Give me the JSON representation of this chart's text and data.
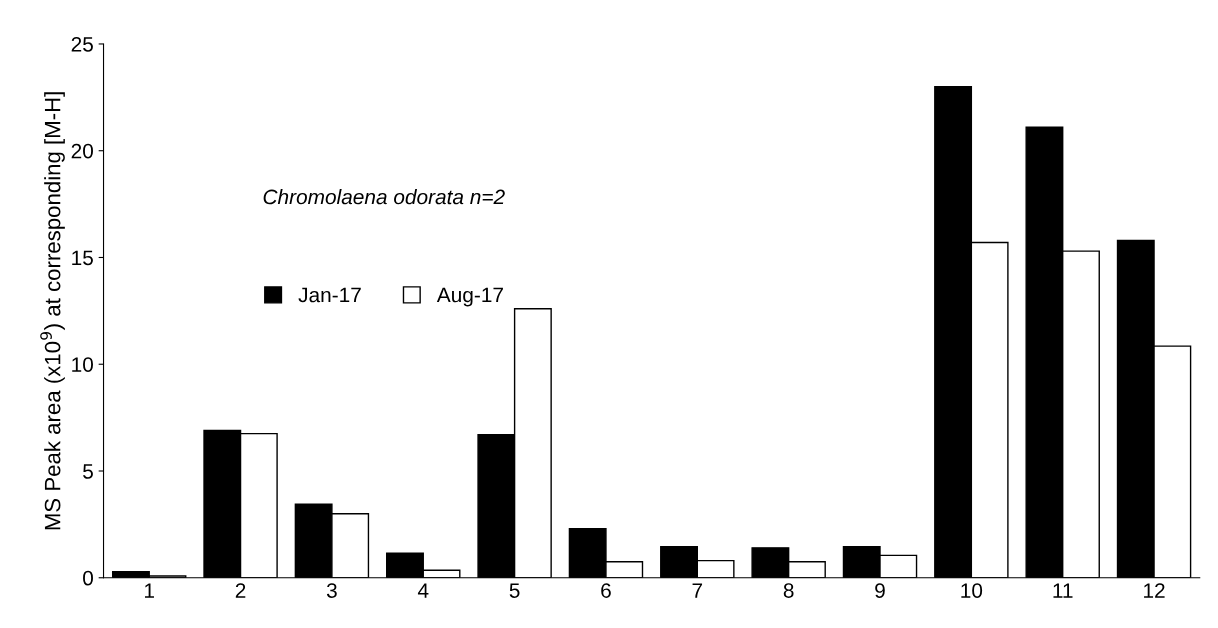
{
  "chart_data": {
    "type": "bar",
    "ylabel": "MS Peak area (x10$^{9}$) at corresponding [M-H]",
    "annotations": [
      "Chromolaena odorata n=2"
    ],
    "categories": [
      "1",
      "2",
      "3",
      "4",
      "5",
      "6",
      "7",
      "8",
      "9",
      "10",
      "11",
      "12"
    ],
    "series": [
      {
        "name": "Jan-17",
        "color": "#000000",
        "values": [
          0.28,
          6.9,
          3.45,
          1.15,
          6.7,
          2.3,
          1.45,
          1.4,
          1.45,
          23.0,
          21.1,
          15.8
        ]
      },
      {
        "name": "Aug-17",
        "color": "#ffffff",
        "values": [
          0.08,
          6.75,
          3.0,
          0.35,
          12.6,
          0.75,
          0.8,
          0.75,
          1.05,
          15.7,
          15.3,
          10.85
        ]
      }
    ],
    "ylim": [
      0,
      25
    ],
    "yticks": [
      0,
      5,
      10,
      15,
      20,
      25
    ],
    "grid": false,
    "legend": "top left"
  }
}
